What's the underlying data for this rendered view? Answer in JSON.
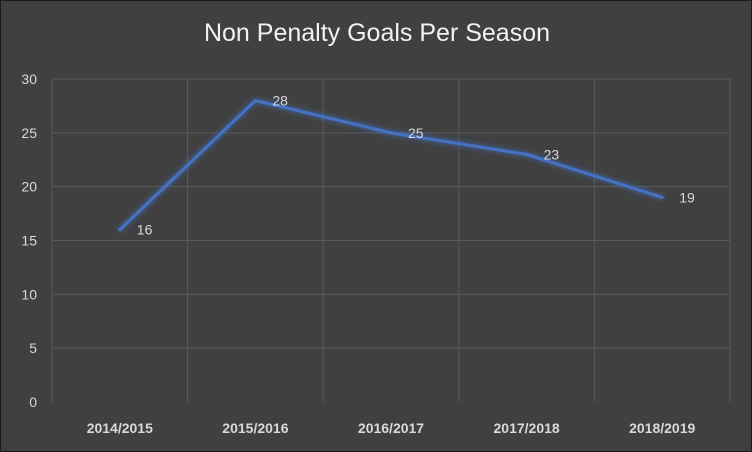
{
  "chart_data": {
    "type": "line",
    "title": "Non Penalty Goals Per Season",
    "xlabel": "",
    "ylabel": "",
    "categories": [
      "2014/2015",
      "2015/2016",
      "2016/2017",
      "2017/2018",
      "2018/2019"
    ],
    "series": [
      {
        "values": [
          16,
          28,
          25,
          23,
          19
        ],
        "color": "#4472c4"
      }
    ],
    "ylim": [
      0,
      30
    ],
    "yticks": [
      0,
      5,
      10,
      15,
      20,
      25,
      30
    ],
    "grid": true,
    "legend": "none",
    "colors": {
      "background": "#404040",
      "text": "#d9d9d9",
      "title": "#f2f2f2",
      "grid": "#5a5a5a"
    }
  }
}
